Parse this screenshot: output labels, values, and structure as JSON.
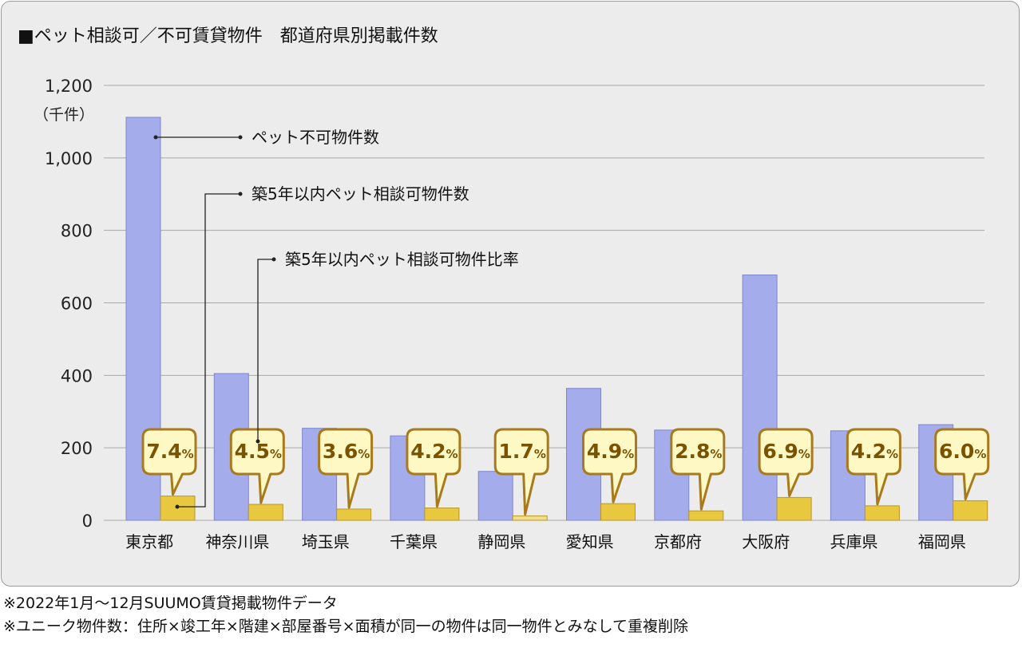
{
  "chart_data": {
    "type": "bar",
    "title": "■ペット相談可／不可賃貸物件　都道府県別掲載件数",
    "unit_label": "（千件）",
    "categories": [
      "東京都",
      "神奈川県",
      "埼玉県",
      "千葉県",
      "静岡県",
      "愛知県",
      "京都府",
      "大阪府",
      "兵庫県",
      "福岡県"
    ],
    "series": [
      {
        "name": "ペット不可物件数",
        "color": "#a4acec",
        "values": [
          1112,
          405,
          254,
          233,
          135,
          364,
          249,
          677,
          247,
          264
        ]
      },
      {
        "name": "築5年以内ペット相談可物件数",
        "color": "#e8c83e",
        "values": [
          67,
          44,
          31,
          34,
          12,
          46,
          26,
          63,
          40,
          54
        ]
      }
    ],
    "ratio_series": {
      "name": "築5年以内ペット相談可物件比率",
      "values": [
        7.4,
        4.5,
        3.6,
        4.2,
        1.7,
        4.9,
        2.8,
        6.9,
        4.2,
        6.0
      ],
      "labels": [
        "7.4",
        "4.5",
        "3.6",
        "4.2",
        "1.7",
        "4.9",
        "2.8",
        "6.9",
        "4.2",
        "6.0"
      ],
      "suffix": "%"
    },
    "ylim": [
      0,
      1200
    ],
    "yticks": [
      0,
      200,
      400,
      600,
      800,
      1000,
      1200
    ],
    "ytick_labels": [
      "0",
      "200",
      "400",
      "600",
      "800",
      "1,000",
      "1,200"
    ],
    "grid": true,
    "callout_fill": "#fdf8c4",
    "callout_border": "#a87a1e"
  },
  "notes": [
    "※2022年1月～12月SUUMO賃貸掲載物件データ",
    "※ユニーク物件数：住所×竣工年×階建×部屋番号×面積が同一の物件は同一物件とみなして重複削除"
  ]
}
